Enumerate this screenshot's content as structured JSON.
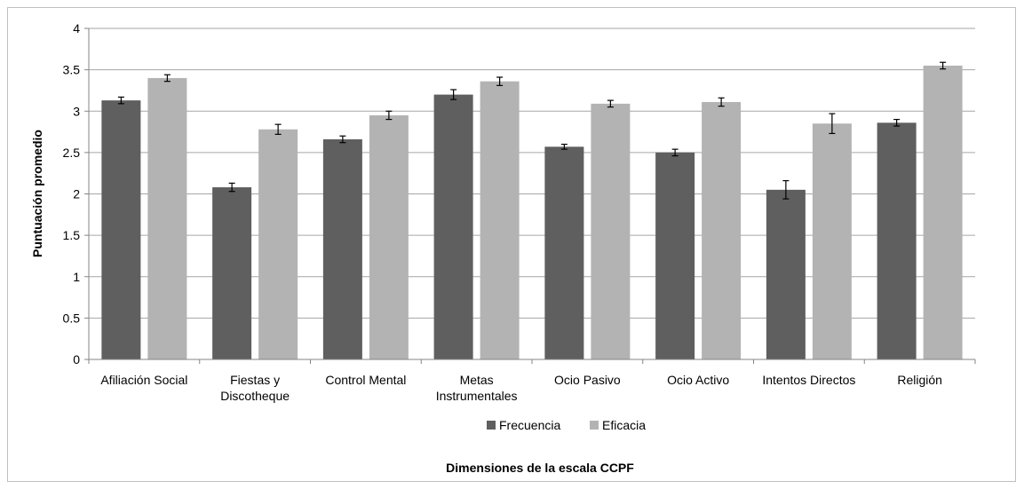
{
  "chart_data": {
    "type": "bar",
    "title": "",
    "xlabel": "Dimensiones de la escala CCPF",
    "ylabel": "Puntuación promedio",
    "ylim": [
      0,
      4
    ],
    "yticks": [
      "0",
      "0.5",
      "1",
      "1.5",
      "2",
      "2.5",
      "3",
      "3.5",
      "4"
    ],
    "grid": true,
    "legend_position": "bottom",
    "categories": [
      [
        "Afiliación Social"
      ],
      [
        "Fiestas y",
        "Discotheque"
      ],
      [
        "Control Mental"
      ],
      [
        "Metas",
        "Instrumentales"
      ],
      [
        "Ocio Pasivo"
      ],
      [
        "Ocio Activo"
      ],
      [
        "Intentos Directos"
      ],
      [
        "Religión"
      ]
    ],
    "series": [
      {
        "name": "Frecuencia",
        "color": "#5f5f5f",
        "values": [
          3.13,
          2.08,
          2.66,
          3.2,
          2.57,
          2.5,
          2.05,
          2.86
        ],
        "errors": [
          0.04,
          0.05,
          0.04,
          0.06,
          0.03,
          0.04,
          0.11,
          0.04
        ]
      },
      {
        "name": "Eficacia",
        "color": "#b3b3b3",
        "values": [
          3.4,
          2.78,
          2.95,
          3.36,
          3.09,
          3.11,
          2.85,
          3.55
        ],
        "errors": [
          0.04,
          0.06,
          0.05,
          0.05,
          0.04,
          0.05,
          0.12,
          0.04
        ]
      }
    ]
  }
}
